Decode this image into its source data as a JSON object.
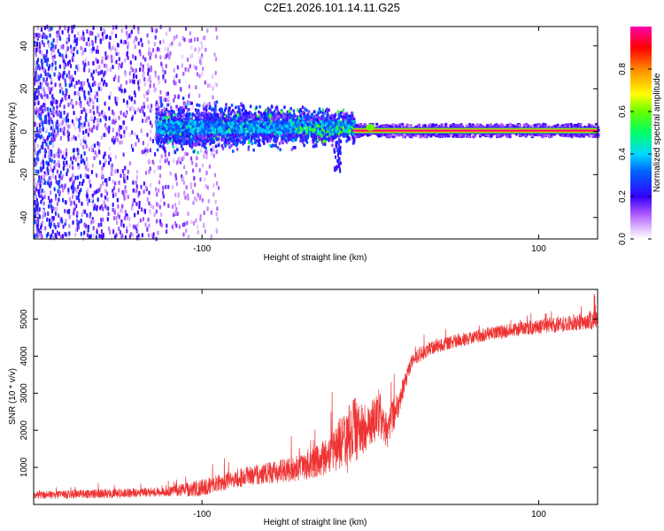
{
  "title": "C2E1.2026.101.14.11.G25",
  "chart_data": [
    {
      "type": "heatmap",
      "title": "C2E1.2026.101.14.11.G25",
      "xlabel": "Height of straight line (km)",
      "ylabel": "Frequency (Hz)",
      "xlim": [
        -200,
        135
      ],
      "ylim": [
        -50,
        49
      ],
      "xticks": [
        -100,
        100
      ],
      "xtick_labels": [
        "-100",
        "100"
      ],
      "yticks": [
        -40,
        -20,
        0,
        20,
        40
      ],
      "ytick_labels": [
        "-40",
        "-20",
        "0",
        "20",
        "40"
      ],
      "colorbar": {
        "label": "Normalized spectral amplitude",
        "range": [
          0,
          1
        ],
        "ticks": [
          0.0,
          0.2,
          0.4,
          0.6,
          0.8
        ],
        "tick_labels": [
          "0.0",
          "0.2",
          "0.4",
          "0.6",
          "0.8"
        ]
      },
      "features": [
        {
          "name": "diffuse noise",
          "x_range": [
            -200,
            -100
          ],
          "y_range": [
            -50,
            49
          ],
          "amplitude": [
            0.05,
            0.3
          ]
        },
        {
          "name": "signal band",
          "x_range": [
            -128,
            -10
          ],
          "center_freq": 2,
          "half_width": 7,
          "amplitude": [
            0.2,
            0.5
          ]
        },
        {
          "name": "tracked tone",
          "x_range": [
            -10,
            135
          ],
          "center_freq": 0.5,
          "amplitude": 1.0
        }
      ]
    },
    {
      "type": "line",
      "xlabel": "Height of straight line (km)",
      "ylabel": "SNR (10 * v/v)",
      "xlim": [
        -200,
        135
      ],
      "ylim": [
        0,
        5800
      ],
      "xticks": [
        -100,
        100
      ],
      "xtick_labels": [
        "-100",
        "100"
      ],
      "yticks": [
        1000,
        2000,
        3000,
        4000,
        5000
      ],
      "ytick_labels": [
        "1000",
        "2000",
        "3000",
        "4000",
        "5000"
      ],
      "series": [
        {
          "name": "SNR",
          "color": "#ee3333",
          "trend_x": [
            -200,
            -150,
            -120,
            -100,
            -80,
            -60,
            -40,
            -25,
            -15,
            -10,
            -5,
            0,
            5,
            10,
            15,
            20,
            25,
            35,
            50,
            70,
            100,
            120,
            135
          ],
          "trend_mean": [
            250,
            300,
            350,
            450,
            700,
            850,
            1000,
            1300,
            1800,
            2000,
            2000,
            2100,
            2500,
            2000,
            2500,
            3200,
            3900,
            4200,
            4400,
            4600,
            4800,
            4900,
            5000
          ],
          "spread": [
            200,
            250,
            250,
            450,
            500,
            600,
            700,
            1000,
            1600,
            1800,
            1500,
            1200,
            1300,
            1000,
            900,
            500,
            400,
            350,
            350,
            350,
            400,
            450,
            500
          ]
        }
      ]
    }
  ]
}
